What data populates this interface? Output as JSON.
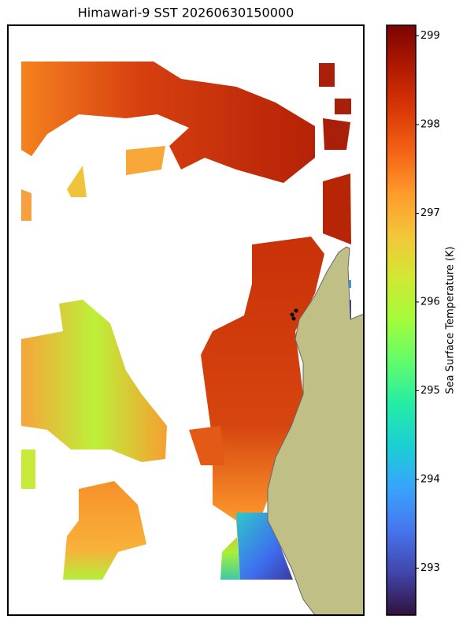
{
  "chart_data": {
    "type": "heatmap",
    "title": "Himawari-9 SST 20260630150000",
    "colorbar_label": "Sea Surface Temperature (K)",
    "colormap": "turbo",
    "clim": [
      292.47,
      299.12
    ],
    "cticks": [
      293,
      294,
      295,
      296,
      297,
      298,
      299
    ]
  }
}
